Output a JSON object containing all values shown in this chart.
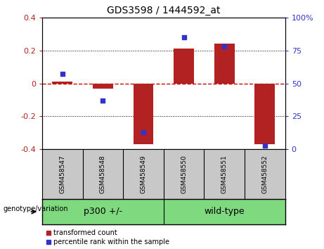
{
  "title": "GDS3598 / 1444592_at",
  "samples": [
    "GSM458547",
    "GSM458548",
    "GSM458549",
    "GSM458550",
    "GSM458551",
    "GSM458552"
  ],
  "red_bars": [
    0.01,
    -0.03,
    -0.37,
    0.21,
    0.24,
    -0.37
  ],
  "blue_dots": [
    57,
    37,
    13,
    85,
    78,
    3
  ],
  "ylim_left": [
    -0.4,
    0.4
  ],
  "ylim_right": [
    0,
    100
  ],
  "yticks_left": [
    -0.4,
    -0.2,
    0.0,
    0.2,
    0.4
  ],
  "yticks_right": [
    0,
    25,
    50,
    75,
    100
  ],
  "ytick_labels_right": [
    "0",
    "25",
    "50",
    "75",
    "100%"
  ],
  "groups": [
    {
      "label": "p300 +/-",
      "span": [
        0,
        2
      ]
    },
    {
      "label": "wild-type",
      "span": [
        3,
        5
      ]
    }
  ],
  "group_label": "genotype/variation",
  "red_color": "#B22222",
  "blue_color": "#3333CC",
  "bar_width": 0.5,
  "zero_line_color": "#CC0000",
  "bg_color": "#FFFFFF",
  "plot_bg": "#FFFFFF",
  "label_box_bg": "#C8C8C8",
  "group_box_bg": "#7FD97F",
  "legend_red_label": "transformed count",
  "legend_blue_label": "percentile rank within the sample"
}
